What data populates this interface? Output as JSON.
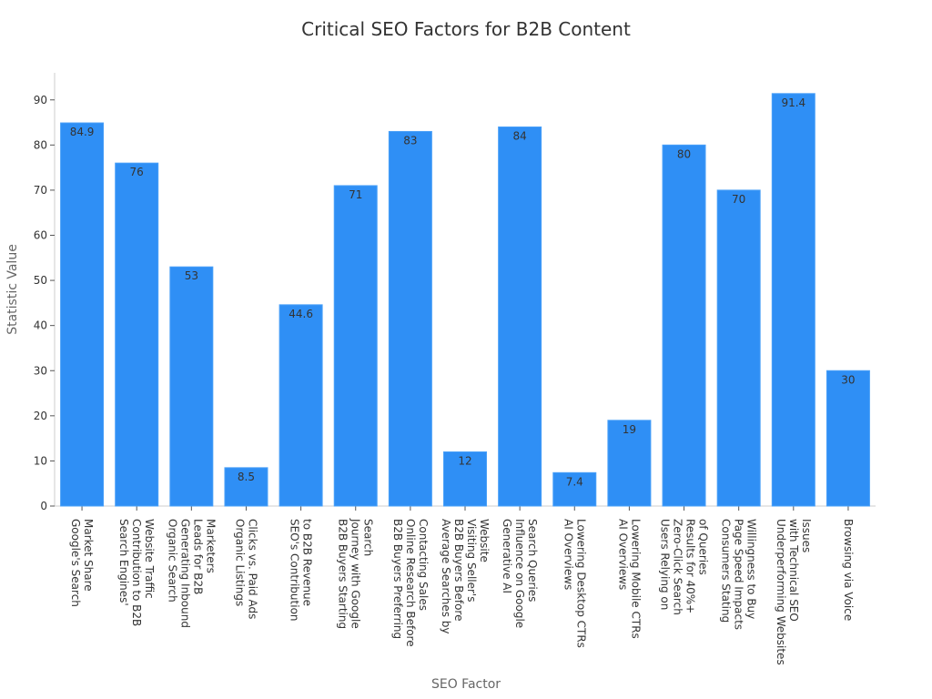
{
  "chart_data": {
    "type": "bar",
    "title": "Critical SEO Factors for B2B Content",
    "xlabel": "SEO Factor",
    "ylabel": "Statistic Value",
    "ylim": [
      0,
      96
    ],
    "yticks": [
      0,
      10,
      20,
      30,
      40,
      50,
      60,
      70,
      80,
      90
    ],
    "grid": false,
    "bar_color": "#2f8ff5",
    "categories": [
      [
        "Google's Search",
        "Market Share"
      ],
      [
        "Search Engines'",
        "Contribution to B2B",
        "Website Traffic"
      ],
      [
        "Organic Search",
        "Generating Inbound",
        "Leads for B2B",
        "Marketers"
      ],
      [
        "Organic Listings",
        "Clicks vs. Paid Ads"
      ],
      [
        "SEO's Contribution",
        "to B2B Revenue"
      ],
      [
        "B2B Buyers Starting",
        "Journey with Google",
        "Search"
      ],
      [
        "B2B Buyers Preferring",
        "Online Research Before",
        "Contacting Sales"
      ],
      [
        "Average Searches by",
        "B2B Buyers Before",
        "Visiting Seller's",
        "Website"
      ],
      [
        "Generative AI",
        "Influence on Google",
        "Search Queries"
      ],
      [
        "AI Overviews",
        "Lowering Desktop CTRs"
      ],
      [
        "AI Overviews",
        "Lowering Mobile CTRs"
      ],
      [
        "Users Relying on",
        "Zero-Click Search",
        "Results for 40%+",
        "of Queries"
      ],
      [
        "Consumers Stating",
        "Page Speed Impacts",
        "Willingness to Buy"
      ],
      [
        "Underperforming Websites",
        "with Technical SEO",
        "Issues"
      ],
      [
        "Browsing via Voice"
      ]
    ],
    "values": [
      84.9,
      76,
      53,
      8.5,
      44.6,
      71,
      83,
      12,
      84,
      7.4,
      19,
      80,
      70,
      91.4,
      30
    ],
    "data_labels": [
      "84.9",
      "76",
      "53",
      "8.5",
      "44.6",
      "71",
      "83",
      "12",
      "84",
      "7.4",
      "19",
      "80",
      "70",
      "91.4",
      "30"
    ]
  }
}
